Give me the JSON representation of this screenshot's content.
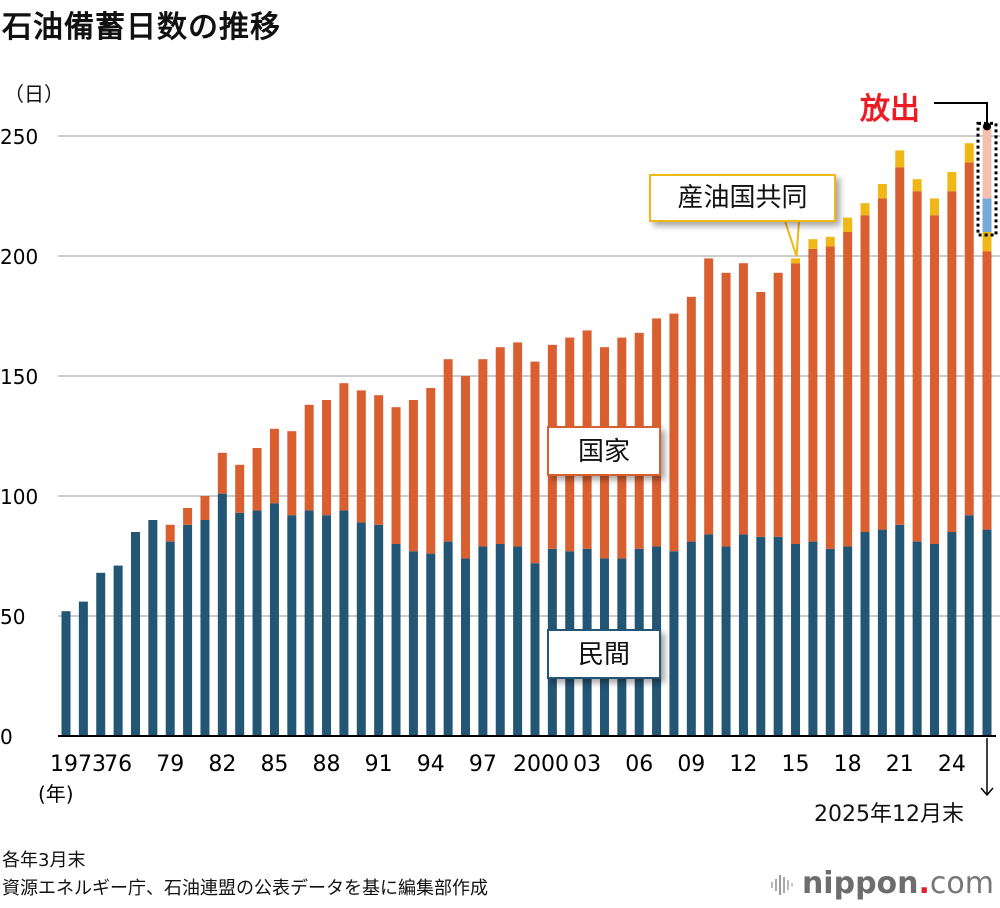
{
  "title": "石油備蓄日数の推移",
  "unit_label": "（日）",
  "year_unit_label": "(年)",
  "notes": [
    "各年3月末",
    "資源エネルギー庁、石油連盟の公表データを基に編集部作成"
  ],
  "logo": {
    "main": "nippon",
    "dot": ".",
    "suffix": "com"
  },
  "colors": {
    "private": "#235574",
    "national": "#d95f30",
    "joint": "#f0b817",
    "released_blue": "#77a9d9",
    "released_pink": "#f2c0ad",
    "release_label": "#ec1c24",
    "grid": "#cccccc"
  },
  "labels": {
    "national": "国家",
    "private": "民間",
    "joint": "産油国共同",
    "release": "放出",
    "last_date": "2025年12月末"
  },
  "chart_data": {
    "type": "bar",
    "stacked": true,
    "title": "石油備蓄日数の推移",
    "xlabel": "(年)",
    "ylabel": "（日）",
    "ylim": [
      0,
      250
    ],
    "yticks": [
      0,
      50,
      100,
      150,
      200,
      250
    ],
    "grid": true,
    "categories": [
      "1973",
      "1974",
      "1975",
      "1976",
      "1977",
      "1978",
      "1979",
      "1980",
      "1981",
      "1982",
      "1983",
      "1984",
      "1985",
      "1986",
      "1987",
      "1988",
      "1989",
      "1990",
      "1991",
      "1992",
      "1993",
      "1994",
      "1995",
      "1996",
      "1997",
      "1998",
      "1999",
      "2000",
      "2001",
      "2002",
      "2003",
      "2004",
      "2005",
      "2006",
      "2007",
      "2008",
      "2009",
      "2010",
      "2011",
      "2012",
      "2013",
      "2014",
      "2015",
      "2016",
      "2017",
      "2018",
      "2019",
      "2020",
      "2021",
      "2022",
      "2023",
      "2024",
      "2025",
      "2025-12"
    ],
    "xtick_labels": [
      {
        "index": 0,
        "label": "1973"
      },
      {
        "index": 3,
        "label": "76"
      },
      {
        "index": 6,
        "label": "79"
      },
      {
        "index": 9,
        "label": "82"
      },
      {
        "index": 12,
        "label": "85"
      },
      {
        "index": 15,
        "label": "88"
      },
      {
        "index": 18,
        "label": "91"
      },
      {
        "index": 21,
        "label": "94"
      },
      {
        "index": 24,
        "label": "97"
      },
      {
        "index": 27,
        "label": "2000"
      },
      {
        "index": 30,
        "label": "03"
      },
      {
        "index": 33,
        "label": "06"
      },
      {
        "index": 36,
        "label": "09"
      },
      {
        "index": 39,
        "label": "12"
      },
      {
        "index": 42,
        "label": "15"
      },
      {
        "index": 45,
        "label": "18"
      },
      {
        "index": 48,
        "label": "21"
      },
      {
        "index": 51,
        "label": "24"
      }
    ],
    "series": [
      {
        "name": "民間",
        "key": "private",
        "values": [
          52,
          56,
          68,
          71,
          85,
          90,
          81,
          88,
          90,
          101,
          93,
          94,
          97,
          92,
          94,
          92,
          94,
          89,
          88,
          80,
          77,
          76,
          81,
          74,
          79,
          80,
          79,
          72,
          78,
          77,
          78,
          74,
          74,
          78,
          79,
          77,
          81,
          84,
          79,
          84,
          83,
          83,
          80,
          81,
          78,
          79,
          85,
          86,
          88,
          81,
          80,
          85,
          92,
          86
        ]
      },
      {
        "name": "国家",
        "key": "national",
        "values": [
          0,
          0,
          0,
          0,
          0,
          0,
          7,
          7,
          10,
          17,
          20,
          26,
          31,
          35,
          44,
          48,
          53,
          55,
          54,
          57,
          63,
          69,
          76,
          76,
          78,
          82,
          85,
          84,
          85,
          89,
          91,
          88,
          92,
          90,
          95,
          99,
          102,
          115,
          114,
          113,
          102,
          110,
          117,
          122,
          126,
          131,
          132,
          138,
          149,
          146,
          137,
          142,
          147,
          116
        ]
      },
      {
        "name": "産油国共同",
        "key": "joint",
        "values": [
          0,
          0,
          0,
          0,
          0,
          0,
          0,
          0,
          0,
          0,
          0,
          0,
          0,
          0,
          0,
          0,
          0,
          0,
          0,
          0,
          0,
          0,
          0,
          0,
          0,
          0,
          0,
          0,
          0,
          0,
          0,
          0,
          0,
          0,
          0,
          0,
          0,
          0,
          0,
          0,
          0,
          0,
          2,
          4,
          4,
          6,
          5,
          6,
          7,
          5,
          7,
          8,
          8,
          8
        ]
      },
      {
        "name": "放出(青)",
        "key": "released_blue",
        "values": [
          0,
          0,
          0,
          0,
          0,
          0,
          0,
          0,
          0,
          0,
          0,
          0,
          0,
          0,
          0,
          0,
          0,
          0,
          0,
          0,
          0,
          0,
          0,
          0,
          0,
          0,
          0,
          0,
          0,
          0,
          0,
          0,
          0,
          0,
          0,
          0,
          0,
          0,
          0,
          0,
          0,
          0,
          0,
          0,
          0,
          0,
          0,
          0,
          0,
          0,
          0,
          0,
          0,
          14
        ]
      },
      {
        "name": "放出(薄赤)",
        "key": "released_pink",
        "values": [
          0,
          0,
          0,
          0,
          0,
          0,
          0,
          0,
          0,
          0,
          0,
          0,
          0,
          0,
          0,
          0,
          0,
          0,
          0,
          0,
          0,
          0,
          0,
          0,
          0,
          0,
          0,
          0,
          0,
          0,
          0,
          0,
          0,
          0,
          0,
          0,
          0,
          0,
          0,
          0,
          0,
          0,
          0,
          0,
          0,
          0,
          0,
          0,
          0,
          0,
          0,
          0,
          0,
          30
        ]
      }
    ],
    "annotations": [
      {
        "text": "国家",
        "series": "national"
      },
      {
        "text": "民間",
        "series": "private"
      },
      {
        "text": "産油国共同",
        "points_to": "2015"
      },
      {
        "text": "放出",
        "points_to": "2025-12"
      },
      {
        "text": "2025年12月末",
        "points_to": "2025-12"
      }
    ]
  }
}
